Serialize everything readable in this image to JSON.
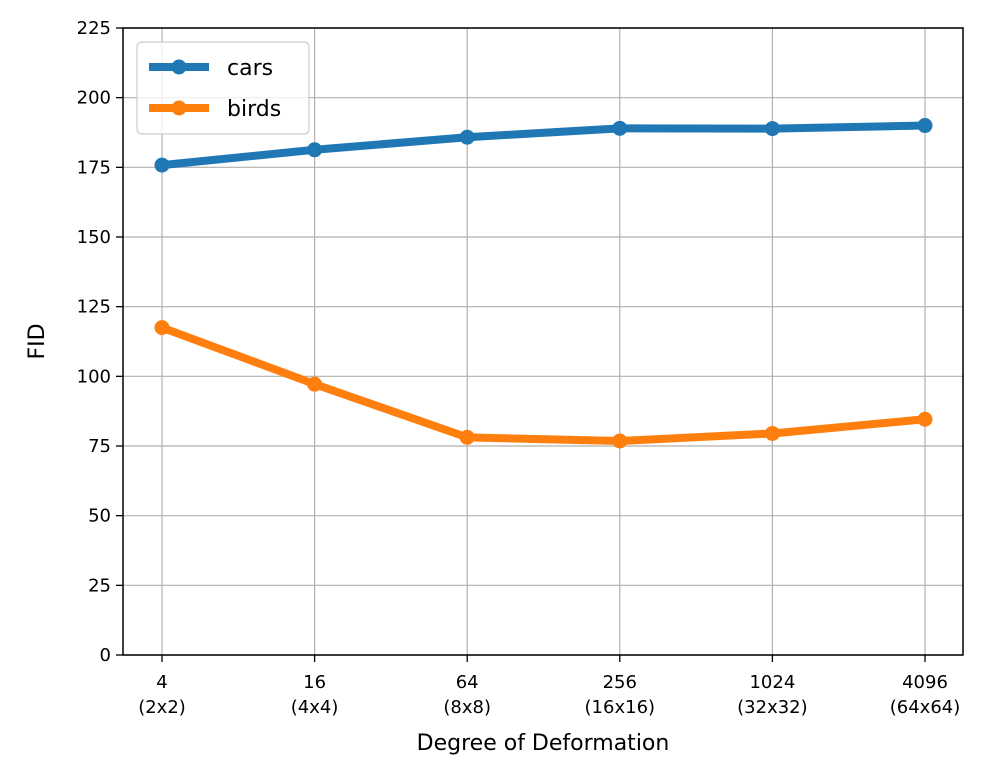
{
  "chart_data": {
    "type": "line",
    "categories": [
      "4\n(2x2)",
      "16\n(4x4)",
      "64\n(8x8)",
      "256\n(16x16)",
      "1024\n(32x32)",
      "4096\n(64x64)"
    ],
    "series": [
      {
        "name": "cars",
        "color": "#1f77b4",
        "values": [
          175.8,
          181.3,
          185.8,
          189.0,
          188.9,
          190.0
        ]
      },
      {
        "name": "birds",
        "color": "#ff7f0e",
        "values": [
          117.5,
          97.2,
          78.1,
          76.8,
          79.5,
          84.6
        ]
      }
    ],
    "title": "",
    "xlabel": "Degree of Deformation",
    "ylabel": "FID",
    "ylim": [
      0,
      225
    ],
    "yticks": [
      0,
      25,
      50,
      75,
      100,
      125,
      150,
      175,
      200,
      225
    ],
    "grid": true,
    "legend_position": "top-left"
  }
}
